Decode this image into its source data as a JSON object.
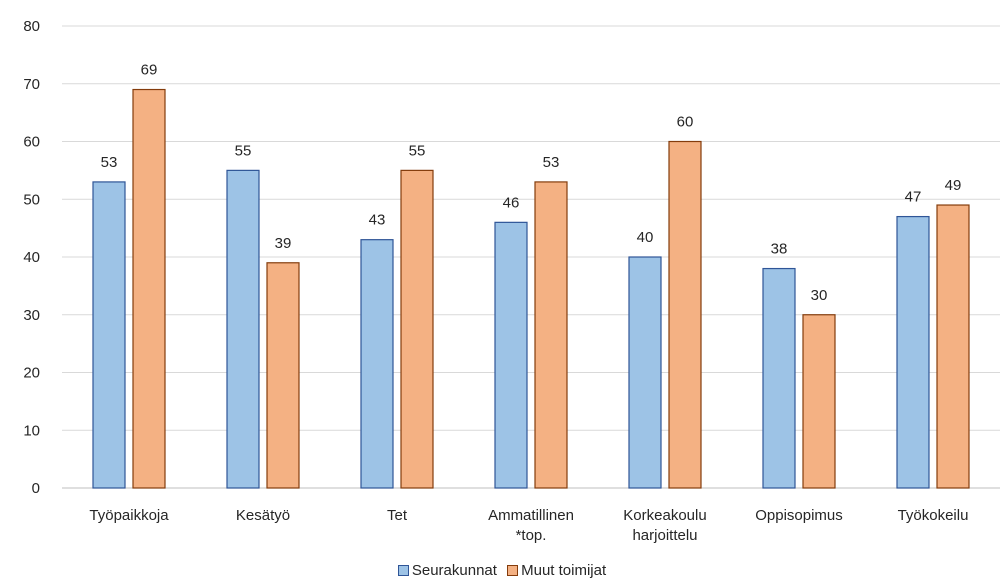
{
  "chart_data": {
    "type": "bar",
    "categories": [
      [
        "Työpaikkoja"
      ],
      [
        "Kesätyö"
      ],
      [
        "Tet"
      ],
      [
        "Ammatillinen",
        "*top."
      ],
      [
        "Korkeakoulu",
        "harjoittelu"
      ],
      [
        "Oppisopimus"
      ],
      [
        "Työkokeilu"
      ]
    ],
    "series": [
      {
        "name": "Seurakunnat",
        "values": [
          53,
          55,
          43,
          46,
          40,
          38,
          47
        ],
        "color": "#9dc3e6",
        "stroke": "#2f5597"
      },
      {
        "name": "Muut toimijat",
        "values": [
          69,
          39,
          55,
          53,
          60,
          30,
          49
        ],
        "color": "#f4b183",
        "stroke": "#843c0c"
      }
    ],
    "ylim": [
      0,
      80
    ],
    "yticks": [
      0,
      10,
      20,
      30,
      40,
      50,
      60,
      70,
      80
    ],
    "grid": true,
    "legend_position": "bottom"
  }
}
